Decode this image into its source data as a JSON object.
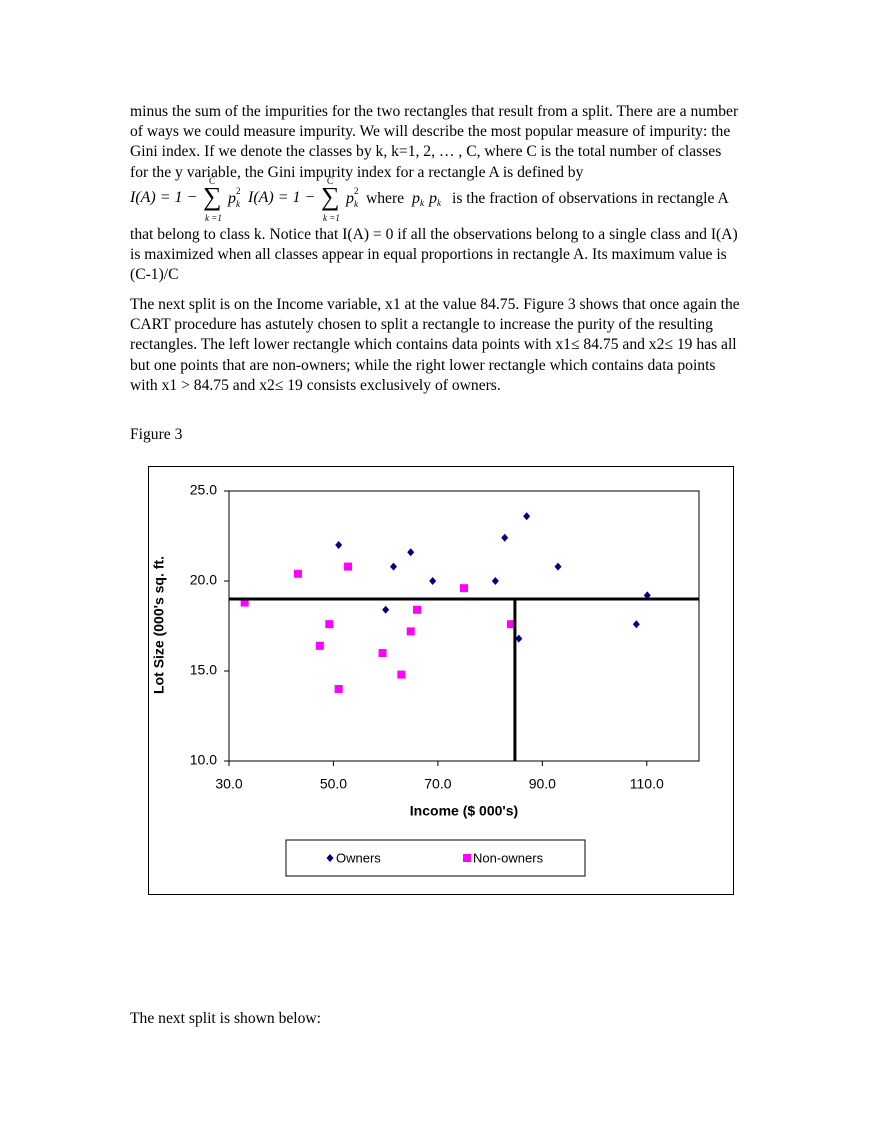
{
  "paragraphs": [
    {
      "lines": [
        "minus the sum of the impurities for the two rectangles that result from a split. There are a number",
        "of ways we could measure impurity. We will describe the most popular measure of impurity: the",
        "Gini index. If we denote the classes by k, k=1, 2, … , C, where C is the total number of classes",
        "for the y variable, the Gini impurity index for a rectangle A is defined by"
      ]
    },
    {
      "lines": [
        "that belong to class k. Notice that I(A) = 0 if all the observations belong to a single class and I(A)",
        "is maximized when all classes appear in equal proportions in rectangle A. Its maximum value is",
        "(C-1)/C"
      ]
    },
    {
      "lines": [
        "The next split is on the Income variable, x1 at the value 84.75. Figure 3 shows that once again the",
        "CART procedure has astutely chosen to split a rectangle to increase the purity of the resulting",
        "rectangles. The left lower rectangle which contains data points with x1≤ 84.75 and  x2≤ 19 has all",
        "but one points that are non-owners; while the right lower rectangle which contains data points",
        "with x1 > 84.75 and  x2≤ 19 consists exclusively of owners."
      ]
    }
  ],
  "formula": {
    "lhs": "I(A) = 1 −",
    "sum": "∑",
    "upper": "C",
    "lower": "k =1",
    "term": "p",
    "exp": "2",
    "index": "k",
    "where": "where",
    "rest": "is the fraction of observations in rectangle A"
  },
  "figure_label": "Figure 3",
  "closing": "The next split is shown below:",
  "chart_data": {
    "type": "scatter",
    "x_label": "Income ($ 000's)",
    "y_label": "Lot Size (000's sq. ft.",
    "xlim": [
      30,
      120
    ],
    "ylim": [
      10,
      25
    ],
    "xticks": [
      {
        "value": 30,
        "label": "30.0"
      },
      {
        "value": 50,
        "label": "50.0"
      },
      {
        "value": 70,
        "label": "70.0"
      },
      {
        "value": 90,
        "label": "90.0"
      },
      {
        "value": 110,
        "label": "110.0"
      }
    ],
    "yticks": [
      {
        "value": 10,
        "label": "10.0"
      },
      {
        "value": 15,
        "label": "15.0"
      },
      {
        "value": 20,
        "label": "20.0"
      },
      {
        "value": 25,
        "label": "25.0"
      }
    ],
    "grid": false,
    "h_split": 19,
    "v_split": 84.75,
    "series": [
      {
        "name": "Owners",
        "marker": "diamond",
        "color": "#000080",
        "x": [
          60,
          85.5,
          64.8,
          61.5,
          87,
          110.1,
          108,
          82.8,
          69,
          93,
          51,
          81
        ],
        "values": [
          18.4,
          16.8,
          21.6,
          20.8,
          23.6,
          19.2,
          17.6,
          22.4,
          20,
          20.8,
          22,
          20
        ]
      },
      {
        "name": "Non-owners",
        "marker": "square",
        "color": "#ff00ff",
        "x": [
          75,
          52.8,
          64.8,
          43.2,
          84,
          49.2,
          59.4,
          66,
          47.4,
          33,
          51,
          63
        ],
        "values": [
          19.6,
          20.8,
          17.2,
          20.4,
          17.6,
          17.6,
          16,
          18.4,
          16.4,
          18.8,
          14,
          14.8
        ]
      }
    ]
  }
}
